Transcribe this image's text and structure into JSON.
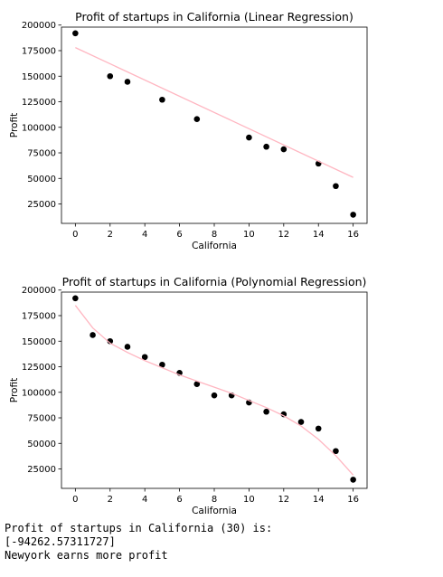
{
  "chart_data": [
    {
      "type": "scatter",
      "title": "Profit of startups in California (Linear Regression)",
      "xlabel": "California",
      "ylabel": "Profit",
      "xlim": [
        -0.8,
        16.8
      ],
      "ylim": [
        6000,
        198000
      ],
      "xticks": [
        0,
        2,
        4,
        6,
        8,
        10,
        12,
        14,
        16
      ],
      "yticks": [
        25000,
        50000,
        75000,
        100000,
        125000,
        150000,
        175000,
        200000
      ],
      "grid": false,
      "series": [
        {
          "kind": "scatter",
          "color": "#000000",
          "x": [
            0,
            2,
            3,
            5,
            7,
            10,
            11,
            12,
            14,
            15,
            16
          ],
          "y": [
            192000,
            150000,
            144500,
            127000,
            108000,
            90000,
            81000,
            78500,
            64500,
            42500,
            14500
          ]
        },
        {
          "kind": "line",
          "color": "#ffb6c1",
          "x": [
            0,
            16
          ],
          "y": [
            178000,
            51000
          ]
        }
      ]
    },
    {
      "type": "scatter",
      "title": "Profit of startups in California (Polynomial Regression)",
      "xlabel": "California",
      "ylabel": "Profit",
      "xlim": [
        -0.8,
        16.8
      ],
      "ylim": [
        6000,
        198000
      ],
      "xticks": [
        0,
        2,
        4,
        6,
        8,
        10,
        12,
        14,
        16
      ],
      "yticks": [
        25000,
        50000,
        75000,
        100000,
        125000,
        150000,
        175000,
        200000
      ],
      "grid": false,
      "series": [
        {
          "kind": "scatter",
          "color": "#000000",
          "x": [
            0,
            1,
            2,
            3,
            4,
            5,
            6,
            7,
            8,
            9,
            10,
            11,
            12,
            13,
            14,
            15,
            16
          ],
          "y": [
            192000,
            156000,
            150000,
            144500,
            134500,
            127000,
            119000,
            108000,
            97000,
            97000,
            90000,
            81000,
            78500,
            71000,
            64500,
            42500,
            14500
          ]
        },
        {
          "kind": "line",
          "color": "#ffb6c1",
          "x": [
            0,
            1,
            2,
            3,
            4,
            5,
            6,
            7,
            8,
            9,
            10,
            11,
            12,
            13,
            14,
            15,
            16
          ],
          "y": [
            185000,
            163000,
            148000,
            139000,
            131000,
            124000,
            117000,
            111000,
            105000,
            99000,
            92000,
            85000,
            77000,
            67000,
            54000,
            38000,
            19000
          ]
        }
      ]
    }
  ],
  "output": {
    "lines": [
      "Profit of startups in California (30) is:",
      "[-94262.57311727]",
      "Newyork earns more profit"
    ]
  }
}
